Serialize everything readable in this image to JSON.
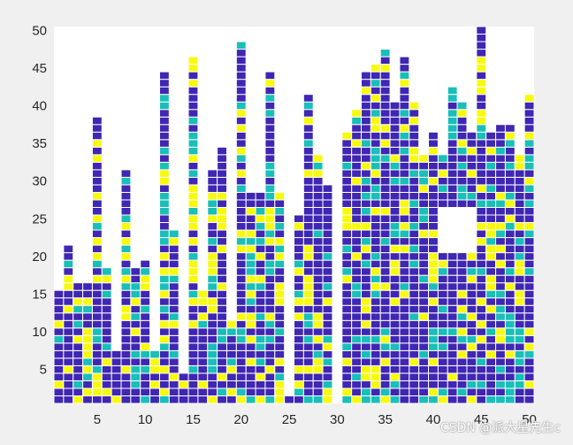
{
  "chart_data": {
    "type": "heatmap",
    "title": "",
    "xlabel": "",
    "ylabel": "",
    "xlim": [
      0.5,
      50.5
    ],
    "ylim": [
      0.5,
      50.5
    ],
    "x_ticks": [
      5,
      10,
      15,
      20,
      25,
      30,
      35,
      40,
      45,
      50
    ],
    "y_ticks": [
      5,
      10,
      15,
      20,
      25,
      30,
      35,
      40,
      45,
      50
    ],
    "grid": false,
    "palette": [
      "#ffffff",
      "#3f26b3",
      "#19bfb8",
      "#f8fa0d"
    ],
    "cell_values": [
      1,
      2,
      3
    ],
    "empty_value": 0,
    "column_heights": [
      15,
      21,
      16,
      16,
      38,
      18,
      7,
      31,
      18,
      19,
      7,
      44,
      23,
      4,
      46,
      15,
      31,
      34,
      11,
      48,
      28,
      28,
      44,
      28,
      1,
      25,
      41,
      33,
      29,
      0,
      36,
      39,
      44,
      45,
      47,
      40,
      46,
      40,
      33,
      36,
      33,
      42,
      40,
      36,
      50,
      36,
      37,
      37,
      33,
      41
    ],
    "empty_region": {
      "x": [
        41,
        44
      ],
      "y": [
        21,
        26
      ]
    }
  },
  "watermark": "CSDN @派大星先生c"
}
